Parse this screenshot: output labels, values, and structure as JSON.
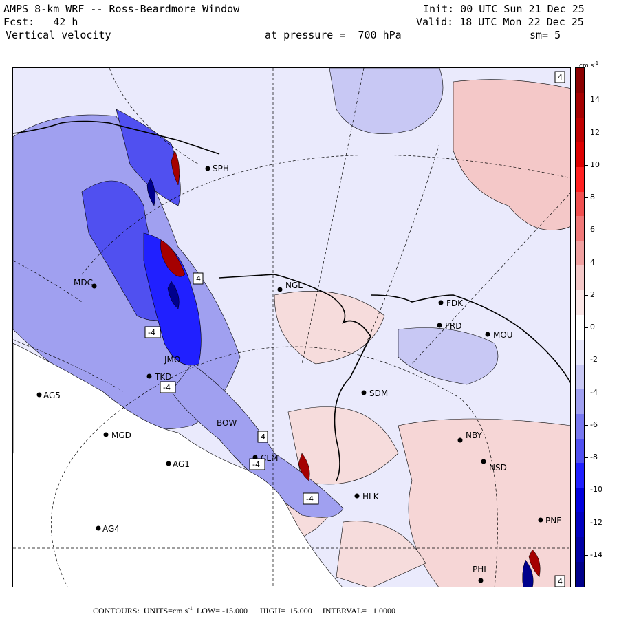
{
  "header": {
    "line1_left": "AMPS 8-km WRF -- Ross-Beardmore Window",
    "line1_right": "Init: 00 UTC Sun 21 Dec 25",
    "line2_left": "Fcst:   42 h",
    "line2_right": "Valid: 18 UTC Mon 22 Dec 25",
    "line3_left": "Vertical velocity",
    "line3_mid": "at pressure =  700 hPa",
    "line3_right": "sm= 5"
  },
  "colorbar": {
    "units": "cm s",
    "units_exp": "-1",
    "labels": [
      "14",
      "12",
      "10",
      "8",
      "6",
      "4",
      "2",
      "0",
      "-2",
      "-4",
      "-6",
      "-8",
      "-10",
      "-12",
      "-14"
    ],
    "colors": [
      "#8b0000",
      "#a50000",
      "#c00000",
      "#dd0000",
      "#ff2020",
      "#f05050",
      "#f07878",
      "#f0a0a0",
      "#f4c8c8",
      "#fae6e6",
      "#ffffff",
      "#e6e6fa",
      "#c8c8f4",
      "#a0a0f0",
      "#7878f0",
      "#5050f0",
      "#2020ff",
      "#0000dd",
      "#0000c0",
      "#0000a5",
      "#00008b"
    ]
  },
  "stations": [
    {
      "id": "SPH",
      "label": "SPH"
    },
    {
      "id": "MDC",
      "label": "MDC"
    },
    {
      "id": "NGL",
      "label": "NGL"
    },
    {
      "id": "FDK",
      "label": "FDK"
    },
    {
      "id": "FRD",
      "label": "FRD"
    },
    {
      "id": "MOU",
      "label": "MOU"
    },
    {
      "id": "SDM",
      "label": "SDM"
    },
    {
      "id": "TKD",
      "label": "TKD"
    },
    {
      "id": "AG5",
      "label": "AG5"
    },
    {
      "id": "MGD",
      "label": "MGD"
    },
    {
      "id": "AG1",
      "label": "AG1"
    },
    {
      "id": "NBY",
      "label": "NBY"
    },
    {
      "id": "NSD",
      "label": "NSD"
    },
    {
      "id": "HLK",
      "label": "HLK"
    },
    {
      "id": "AG4",
      "label": "AG4"
    },
    {
      "id": "PNE",
      "label": "PNE"
    },
    {
      "id": "PHL",
      "label": "PHL"
    },
    {
      "id": "BOW",
      "label": "BOW"
    },
    {
      "id": "CLM",
      "label": "CLM"
    },
    {
      "id": "JMO",
      "label": "JMO"
    }
  ],
  "contour_labels": [
    "4",
    "-4",
    "-4",
    "4",
    "-4",
    "-4",
    "4",
    "4"
  ],
  "footer": {
    "contours": "CONTOURS:  UNITS=cm s",
    "exp": "-1",
    "rest": "  LOW= -15.000      HIGH=  15.000     INTERVAL=   1.0000"
  }
}
